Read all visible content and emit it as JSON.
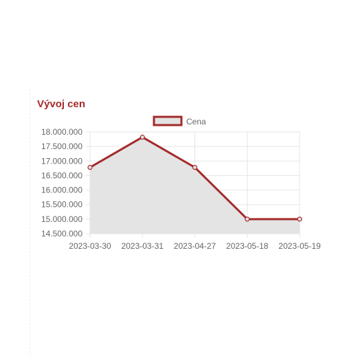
{
  "section": {
    "title": "Vývoj cen"
  },
  "chart_data": {
    "type": "area",
    "categories": [
      "2023-03-30",
      "2023-03-31",
      "2023-04-27",
      "2023-05-18",
      "2023-05-19"
    ],
    "series": [
      {
        "name": "Cena",
        "values": [
          16780000,
          17820000,
          16780000,
          15000000,
          15000000
        ]
      }
    ],
    "ylim": [
      14500000,
      18000000
    ],
    "yticks": [
      18000000,
      17500000,
      17000000,
      16500000,
      16000000,
      15500000,
      15000000,
      14500000
    ],
    "ytick_labels": [
      "18.000.000",
      "17.500.000",
      "17.000.000",
      "16.500.000",
      "16.000.000",
      "15.500.000",
      "15.000.000",
      "14.500.000"
    ],
    "grid": true,
    "legend": "top-center",
    "colors": {
      "line": "#a52a2a",
      "fill": "#e3e3e3",
      "grid": "#e5e5e5"
    }
  }
}
